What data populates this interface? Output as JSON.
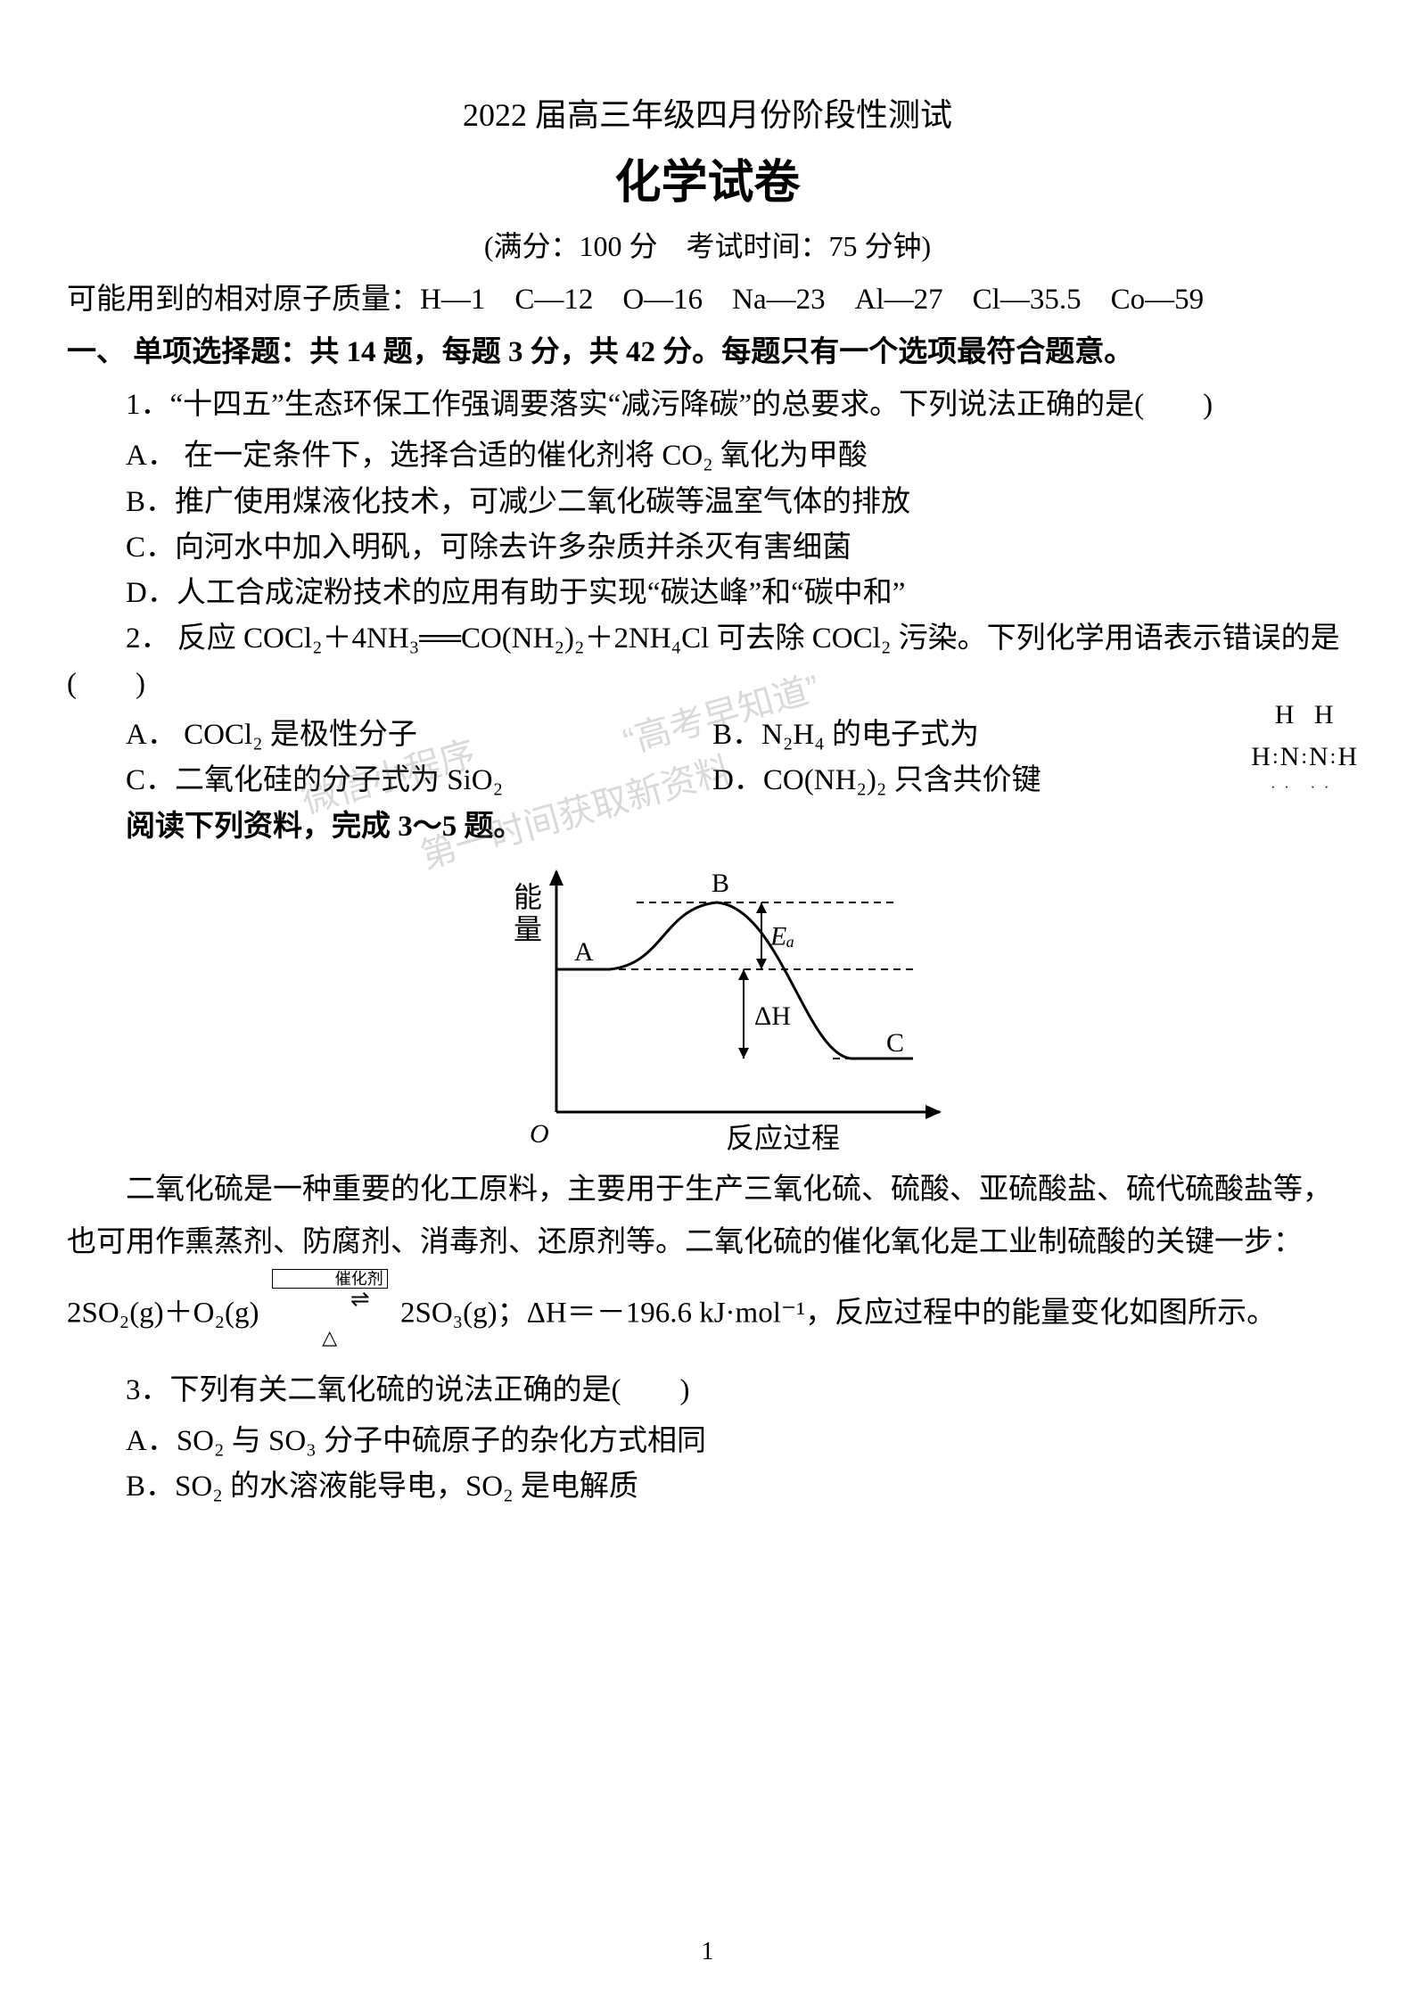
{
  "header": {
    "line1": "2022 届高三年级四月份阶段性测试",
    "title": "化学试卷",
    "meta": "(满分：100 分　考试时间：75 分钟)"
  },
  "atomic_masses": "可能用到的相对原子质量：H—1　C—12　O—16　Na—23　Al—27　Cl—35.5　Co—59",
  "section1_heading": "一、 单项选择题：共 14 题，每题 3 分，共 42 分。每题只有一个选项最符合题意。",
  "q1": {
    "stem": "1．“十四五”生态环保工作强调要落实“减污降碳”的总要求。下列说法正确的是(　　)",
    "A": "A． 在一定条件下，选择合适的催化剂将 CO₂ 氧化为甲酸",
    "B": "B．推广使用煤液化技术，可减少二氧化碳等温室气体的排放",
    "C": "C．向河水中加入明矾，可除去许多杂质并杀灭有害细菌",
    "D": "D．人工合成淀粉技术的应用有助于实现“碳达峰”和“碳中和”"
  },
  "q2": {
    "stem": "2． 反应 COCl₂＋4NH₃══CO(NH₂)₂＋2NH₄Cl 可去除 COCl₂ 污染。下列化学用语表示错误的是(　　)",
    "A": "A． COCl₂ 是极性分子",
    "B": "B．N₂H₄ 的电子式为",
    "C": "C．二氧化硅的分子式为 SiO₂",
    "D": "D．CO(NH₂)₂ 只含共价键"
  },
  "reading_prompt": "阅读下列资料，完成 3～5 题。",
  "diagram": {
    "y_label": "能量",
    "x_label": "反应过程",
    "points": {
      "A": "A",
      "B": "B",
      "C": "C"
    },
    "Ea_label": "Eₐ",
    "dH_label": "ΔH",
    "origin": "O",
    "colors": {
      "stroke": "#000000",
      "bg": "#ffffff"
    },
    "font_family": "SimSun",
    "axis_fontsize": 32,
    "label_fontsize": 30,
    "stroke_width": 3
  },
  "passage": {
    "p1_prefix": "二氧化硫是一种重要的化工原料，主要用于生产三氧化硫、硫酸、亚硫酸盐、硫代硫酸盐等，也可用作熏蒸剂、防腐剂、消毒剂、还原剂等。二氧化硫的催化氧化是工业制硫酸的关键一步：2SO₂(g)＋O₂(g)",
    "eqn_top": "催化剂",
    "p1_suffix": "2SO₃(g)；ΔH＝－196.6 kJ·mol⁻¹，反应过程中的能量变化如图所示。"
  },
  "q3": {
    "stem": "3．下列有关二氧化硫的说法正确的是(　　)",
    "A": "A．SO₂ 与 SO₃ 分子中硫原子的杂化方式相同",
    "B": "B．SO₂ 的水溶液能导电，SO₂ 是电解质"
  },
  "watermarks": {
    "w1": "“高考早知道”",
    "w2": "微信小程序",
    "w3": "第一时间获取新资料"
  },
  "page_number": "1"
}
